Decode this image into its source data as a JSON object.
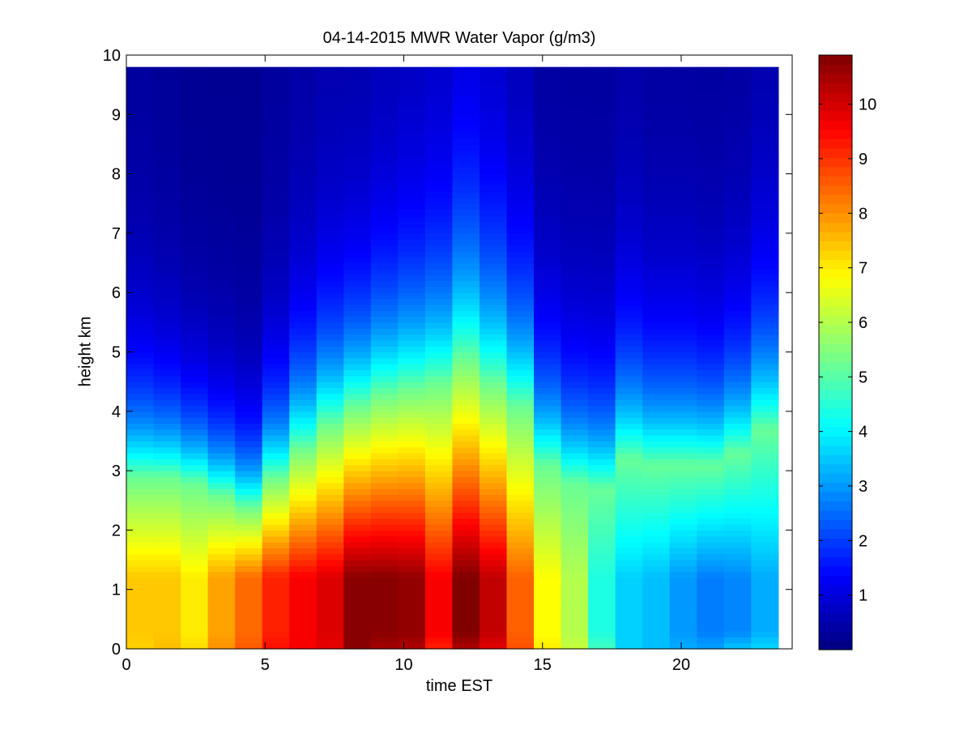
{
  "chart_data": {
    "type": "heatmap",
    "title": "04-14-2015 MWR Water Vapor (g/m3)",
    "xlabel": "time EST",
    "ylabel": "height km",
    "xlim": [
      0,
      24
    ],
    "ylim": [
      0,
      10
    ],
    "xticks": [
      "0",
      "5",
      "10",
      "15",
      "20"
    ],
    "yticks": [
      "0",
      "1",
      "2",
      "3",
      "4",
      "5",
      "6",
      "7",
      "8",
      "9",
      "10"
    ],
    "colormap": "jet",
    "clim": [
      0,
      10.9
    ],
    "colorbar_ticks": [
      "1",
      "2",
      "3",
      "4",
      "5",
      "6",
      "7",
      "8",
      "9",
      "10"
    ],
    "hours": [
      0.5,
      1.5,
      2.5,
      3.5,
      4.5,
      5.5,
      6.5,
      7.5,
      8.5,
      9.5,
      10.5,
      11.5,
      12.5,
      13.5,
      14.5,
      15.5,
      16.5,
      17.5,
      18.5,
      19.5,
      20.5,
      21.5,
      22.5,
      23.5
    ],
    "surface_vapor": [
      7.3,
      7.5,
      7.2,
      8.0,
      8.6,
      9.4,
      9.6,
      9.8,
      10.8,
      10.5,
      10.4,
      9.2,
      10.4,
      9.8,
      8.7,
      7.0,
      6.2,
      4.8,
      3.6,
      3.4,
      3.2,
      3.1,
      3.5,
      3.7
    ],
    "peak_vapor": [
      7.4,
      7.4,
      7.0,
      7.8,
      8.4,
      9.2,
      9.6,
      9.9,
      10.8,
      10.8,
      10.7,
      9.6,
      10.9,
      10.2,
      8.5,
      6.8,
      6.0,
      4.4,
      3.6,
      3.4,
      3.0,
      2.7,
      2.8,
      3.2
    ],
    "moist_layer_top_km": [
      2.9,
      2.9,
      2.8,
      2.6,
      2.4,
      2.9,
      3.4,
      3.8,
      4.1,
      4.3,
      4.4,
      4.5,
      4.9,
      4.5,
      4.1,
      3.1,
      2.8,
      2.7,
      3.2,
      3.1,
      3.1,
      3.1,
      3.3,
      3.7
    ],
    "scale_height_km": [
      1.4,
      1.3,
      1.2,
      1.15,
      1.1,
      1.3,
      1.5,
      1.6,
      1.6,
      1.7,
      1.8,
      1.9,
      2.2,
      2.1,
      1.9,
      1.6,
      1.5,
      1.5,
      1.7,
      1.6,
      1.6,
      1.5,
      1.6,
      1.8
    ],
    "dry_floor": [
      0.3,
      0.25,
      0.2,
      0.2,
      0.2,
      0.3,
      0.35,
      0.4,
      0.4,
      0.45,
      0.5,
      0.55,
      0.6,
      0.5,
      0.4,
      0.3,
      0.3,
      0.3,
      0.35,
      0.3,
      0.3,
      0.3,
      0.3,
      0.35
    ],
    "height_step_km": 0.1,
    "data_top_km": 9.75,
    "time_extent": [
      0,
      23.5
    ]
  }
}
